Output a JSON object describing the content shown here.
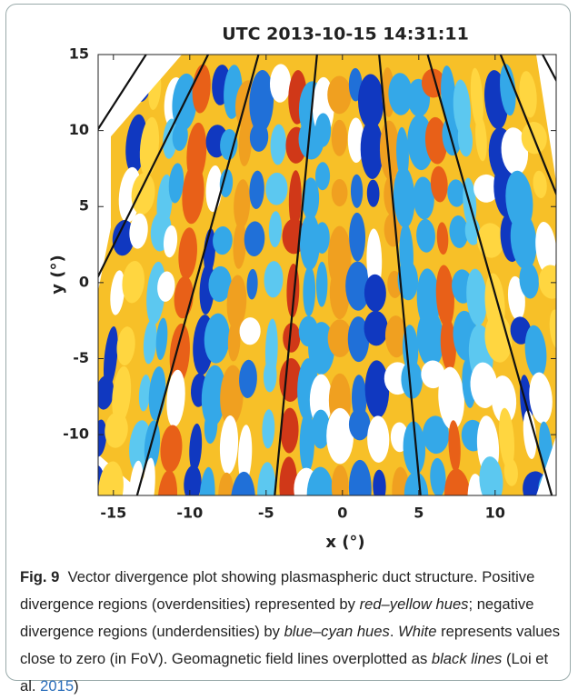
{
  "chart_data": {
    "type": "heatmap",
    "title": "UTC 2013-10-15 14:31:11",
    "xlabel": "x (°)",
    "ylabel": "y (°)",
    "xlim": [
      -16,
      14
    ],
    "ylim": [
      -14,
      15
    ],
    "xticks": [
      -15,
      -10,
      -5,
      0,
      5,
      10
    ],
    "yticks": [
      -10,
      -5,
      0,
      5,
      10,
      15
    ]
  },
  "caption": {
    "label": "Fig. 9",
    "parts": [
      "Vector divergence plot showing plasmaspheric duct structure. Positive divergence regions (overdensities) represented by ",
      "red–yellow hues",
      "; negative divergence regions (underdensities) by ",
      "blue–cyan hues",
      ". ",
      "White",
      " represents values close to zero (in FoV). Geomagnetic field lines overplotted as ",
      "black lines",
      " (Loi et al. ",
      "2015",
      ")"
    ]
  }
}
